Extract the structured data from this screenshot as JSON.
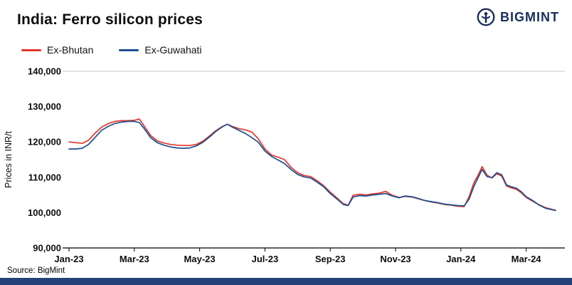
{
  "header": {
    "title": "India: Ferro silicon prices",
    "logo_text": "BIGMINT"
  },
  "footer": {
    "source": "Source: BigMint"
  },
  "colors": {
    "ex_bhutan": "#e5352b",
    "ex_guwahati": "#1d4f91",
    "logo_navy": "#1a2e5c",
    "bottom_bar": "#25417a",
    "axis": "#000000",
    "top_gridline": "#c8c8c8"
  },
  "chart_data": {
    "type": "line",
    "title": "India: Ferro silicon prices",
    "xlabel": "",
    "ylabel": "Prices in INR/t",
    "ylim": [
      90000,
      140000
    ],
    "grid": "top-border-only",
    "legend_position": "top-left",
    "yticks": [
      {
        "label": "90,000",
        "value": 90000
      },
      {
        "label": "100,000",
        "value": 100000
      },
      {
        "label": "110,000",
        "value": 110000
      },
      {
        "label": "120,000",
        "value": 120000
      },
      {
        "label": "130,000",
        "value": 130000
      },
      {
        "label": "140,000",
        "value": 140000
      }
    ],
    "xticks": [
      {
        "label": "Jan-23",
        "month": 0
      },
      {
        "label": "Mar-23",
        "month": 2
      },
      {
        "label": "May-23",
        "month": 4
      },
      {
        "label": "Jul-23",
        "month": 6
      },
      {
        "label": "Sep-23",
        "month": 8
      },
      {
        "label": "Nov-23",
        "month": 10
      },
      {
        "label": "Jan-24",
        "month": 12
      },
      {
        "label": "Mar-24",
        "month": 14
      }
    ],
    "x_months": [
      0,
      0.2,
      0.4,
      0.6,
      0.8,
      1.0,
      1.2,
      1.4,
      1.6,
      1.8,
      2.0,
      2.15,
      2.3,
      2.5,
      2.7,
      2.9,
      3.1,
      3.3,
      3.5,
      3.7,
      3.9,
      4.1,
      4.3,
      4.5,
      4.7,
      4.85,
      5.0,
      5.2,
      5.4,
      5.6,
      5.8,
      6.0,
      6.2,
      6.4,
      6.6,
      6.8,
      7.0,
      7.2,
      7.4,
      7.6,
      7.8,
      8.0,
      8.2,
      8.4,
      8.55,
      8.7,
      8.9,
      9.1,
      9.3,
      9.5,
      9.7,
      9.9,
      10.1,
      10.3,
      10.5,
      10.7,
      10.9,
      11.1,
      11.3,
      11.5,
      11.7,
      11.9,
      12.1,
      12.25,
      12.4,
      12.55,
      12.65,
      12.8,
      12.95,
      13.1,
      13.25,
      13.4,
      13.55,
      13.7,
      13.85,
      14.0,
      14.2,
      14.4,
      14.6,
      14.8,
      14.9
    ],
    "series": [
      {
        "name": "Ex-Bhutan",
        "color": "#e5352b",
        "values": [
          120000,
          119800,
          119600,
          120500,
          122500,
          124200,
          125200,
          125800,
          126000,
          126000,
          126100,
          126500,
          124500,
          121800,
          120300,
          119700,
          119300,
          119100,
          119000,
          119000,
          119300,
          120200,
          121700,
          123200,
          124400,
          125000,
          124400,
          123800,
          123400,
          122800,
          120800,
          118000,
          116300,
          115700,
          115000,
          112800,
          111300,
          110500,
          110200,
          109000,
          107600,
          105800,
          104200,
          102500,
          102100,
          104900,
          105200,
          105000,
          105300,
          105500,
          106000,
          104900,
          104300,
          104600,
          104400,
          103900,
          103400,
          103000,
          102700,
          102300,
          102100,
          101800,
          101700,
          104500,
          108500,
          111000,
          113000,
          110600,
          109800,
          111000,
          110300,
          107500,
          107000,
          106600,
          105600,
          104300,
          103200,
          102200,
          101400,
          100900,
          100700
        ]
      },
      {
        "name": "Ex-Guwahati",
        "color": "#1d4f91",
        "values": [
          118000,
          118000,
          118200,
          119300,
          121300,
          123300,
          124400,
          125200,
          125600,
          125800,
          125800,
          125500,
          123800,
          121200,
          119800,
          119100,
          118600,
          118300,
          118200,
          118300,
          118900,
          119900,
          121400,
          123000,
          124300,
          125000,
          124200,
          123300,
          122400,
          121200,
          119900,
          117400,
          115900,
          114900,
          113900,
          112200,
          110800,
          110100,
          109800,
          108600,
          107300,
          105400,
          103900,
          102300,
          102000,
          104400,
          104800,
          104700,
          105000,
          105200,
          105400,
          104700,
          104200,
          104700,
          104500,
          104000,
          103400,
          103100,
          102800,
          102400,
          102200,
          102000,
          101900,
          103800,
          107500,
          110300,
          112200,
          110200,
          109900,
          111300,
          110700,
          107800,
          107300,
          106900,
          105900,
          104500,
          103400,
          102100,
          101200,
          100800,
          100600
        ]
      }
    ]
  }
}
